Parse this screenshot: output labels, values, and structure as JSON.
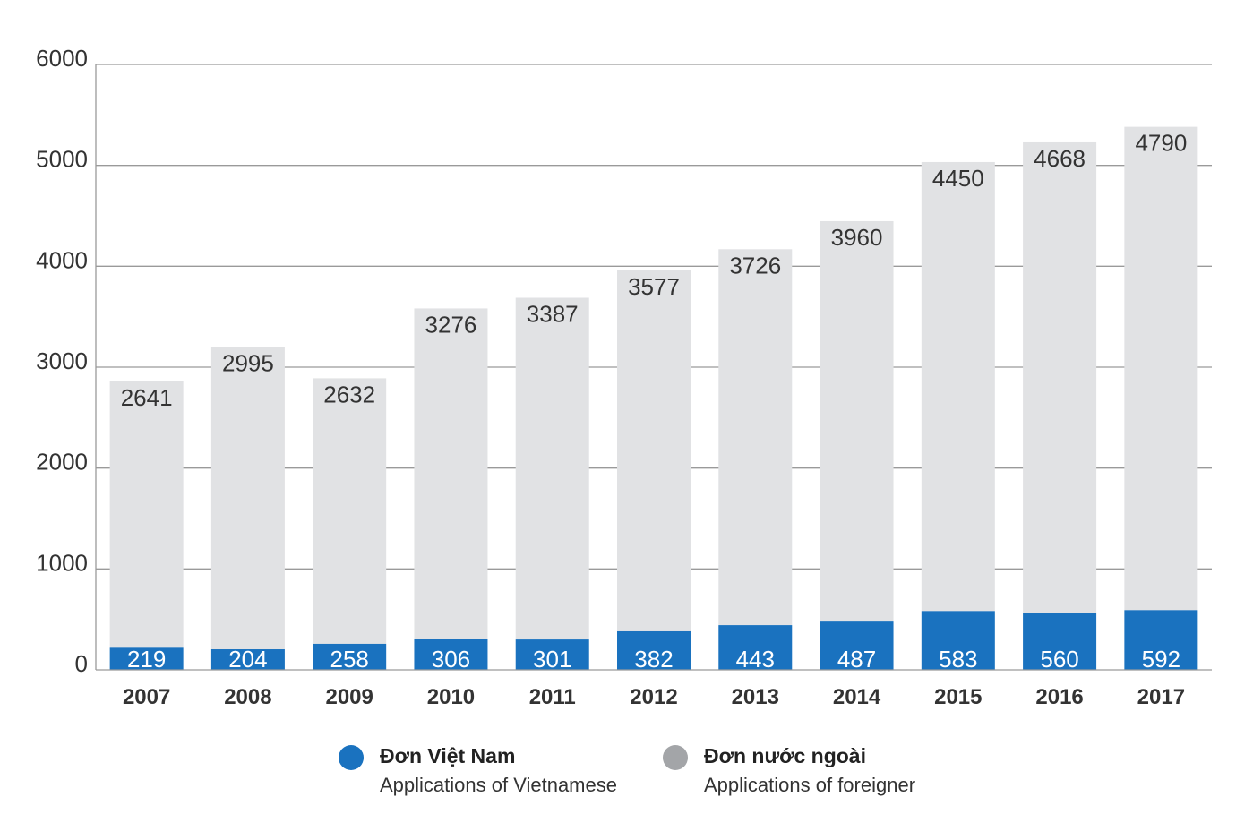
{
  "chart_data": {
    "type": "bar",
    "stacked": true,
    "categories": [
      "2007",
      "2008",
      "2009",
      "2010",
      "2011",
      "2012",
      "2013",
      "2014",
      "2015",
      "2016",
      "2017"
    ],
    "series": [
      {
        "name": "Đơn Việt Nam",
        "subtitle": "Applications of Vietnamese",
        "color": "#1a72bf",
        "values": [
          219,
          204,
          258,
          306,
          301,
          382,
          443,
          487,
          583,
          560,
          592
        ]
      },
      {
        "name": "Đơn nước ngoài",
        "subtitle": "Applications of foreigner",
        "color": "#e1e2e4",
        "values": [
          2641,
          2995,
          2632,
          3276,
          3387,
          3577,
          3726,
          3960,
          4450,
          4668,
          4790
        ]
      }
    ],
    "yticks": [
      "0",
      "1000",
      "2000",
      "3000",
      "4000",
      "5000",
      "6000"
    ],
    "ylim": [
      0,
      6000
    ],
    "grid": true,
    "legend_position": "bottom"
  },
  "legend": {
    "dot_colors": [
      "#1a72bf",
      "#a3a5a8"
    ]
  }
}
